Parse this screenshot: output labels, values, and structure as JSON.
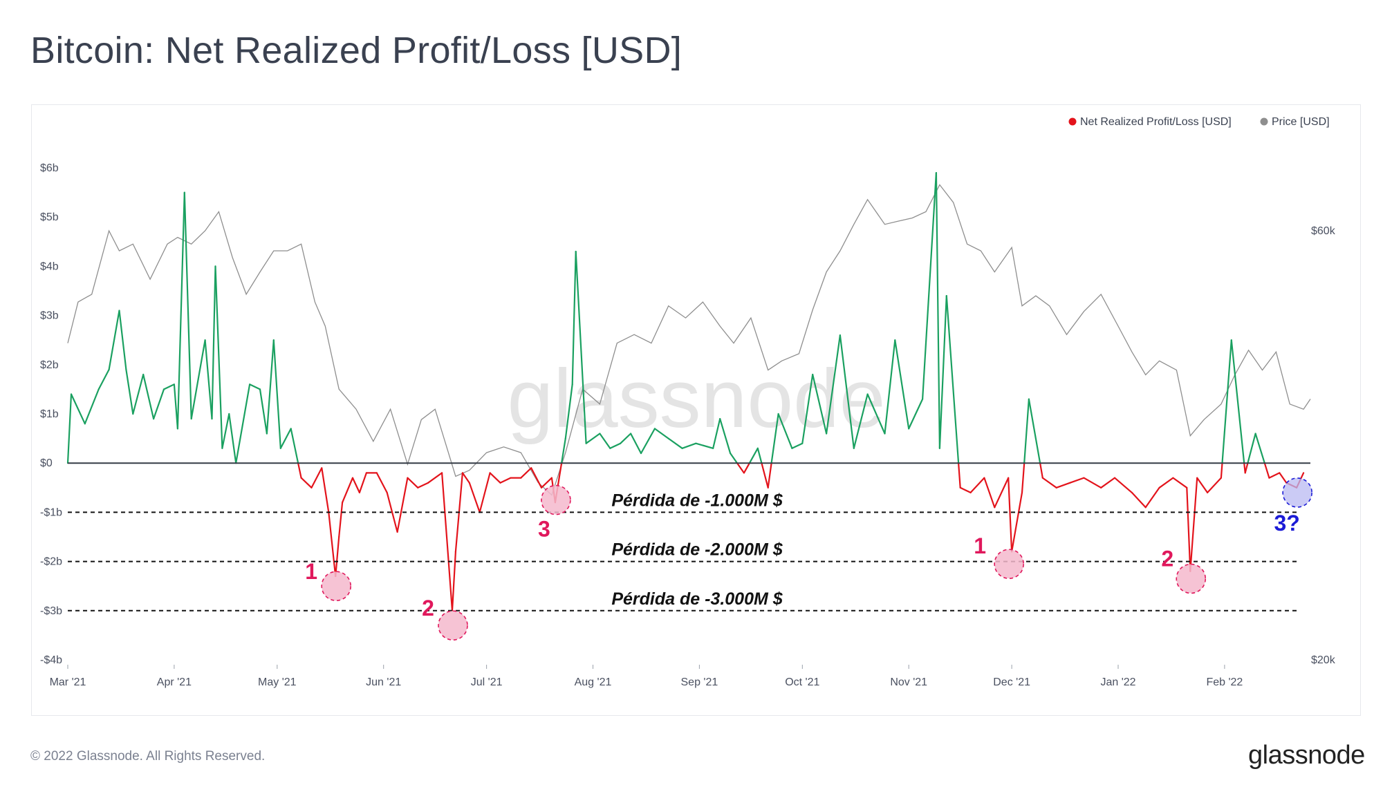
{
  "title": "Bitcoin: Net Realized Profit/Loss [USD]",
  "watermark": "glassnode",
  "footer": {
    "copyright": "© 2022 Glassnode. All Rights Reserved.",
    "logo": "glassnode"
  },
  "colors": {
    "profit": "#1aa060",
    "loss": "#e3131b",
    "price": "#8e8e8e",
    "marker_fill": "#f5b8cc",
    "marker_stroke": "#e0185c",
    "label_pink": "#e0185c",
    "marker_blue_fill": "#b9b9f2",
    "marker_blue_stroke": "#1b1bd6",
    "label_blue": "#1b1bd6"
  },
  "chart_data": {
    "type": "line",
    "legend": {
      "position": "top-right",
      "items": [
        {
          "label": "Net Realized Profit/Loss [USD]",
          "color": "#e3131b"
        },
        {
          "label": "Price [USD]",
          "color": "#8e8e8e"
        }
      ]
    },
    "x_ticks": [
      "Mar '21",
      "Apr '21",
      "May '21",
      "Jun '21",
      "Jul '21",
      "Aug '21",
      "Sep '21",
      "Oct '21",
      "Nov '21",
      "Dec '21",
      "Jan '22",
      "Feb '22"
    ],
    "y_left": {
      "label": "",
      "ylim": [
        -4,
        6
      ],
      "ticks": [
        {
          "value": 6,
          "label": "$6b"
        },
        {
          "value": 5,
          "label": "$5b"
        },
        {
          "value": 4,
          "label": "$4b"
        },
        {
          "value": 3,
          "label": "$3b"
        },
        {
          "value": 2,
          "label": "$2b"
        },
        {
          "value": 1,
          "label": "$1b"
        },
        {
          "value": 0,
          "label": "$0"
        },
        {
          "value": -1,
          "label": "-$1b"
        },
        {
          "value": -2,
          "label": "-$2b"
        },
        {
          "value": -3,
          "label": "-$3b"
        },
        {
          "value": -4,
          "label": "-$4b"
        }
      ]
    },
    "y_right": {
      "label": "",
      "scale": "log",
      "ylim": [
        20000,
        70000
      ],
      "ticks": [
        {
          "value": 60000,
          "label": "$60k"
        },
        {
          "value": 20000,
          "label": "$20k"
        }
      ]
    },
    "series": [
      {
        "name": "Net Realized Profit/Loss [USD]",
        "unit": "billion USD",
        "x": [
          "2021-03-01",
          "2021-03-02",
          "2021-03-06",
          "2021-03-10",
          "2021-03-13",
          "2021-03-16",
          "2021-03-18",
          "2021-03-20",
          "2021-03-23",
          "2021-03-26",
          "2021-03-29",
          "2021-04-01",
          "2021-04-02",
          "2021-04-04",
          "2021-04-06",
          "2021-04-08",
          "2021-04-10",
          "2021-04-12",
          "2021-04-13",
          "2021-04-15",
          "2021-04-17",
          "2021-04-19",
          "2021-04-23",
          "2021-04-26",
          "2021-04-28",
          "2021-04-30",
          "2021-05-02",
          "2021-05-05",
          "2021-05-08",
          "2021-05-11",
          "2021-05-14",
          "2021-05-16",
          "2021-05-18",
          "2021-05-19",
          "2021-05-20",
          "2021-05-23",
          "2021-05-25",
          "2021-05-27",
          "2021-05-30",
          "2021-06-02",
          "2021-06-05",
          "2021-06-08",
          "2021-06-11",
          "2021-06-14",
          "2021-06-18",
          "2021-06-21",
          "2021-06-22",
          "2021-06-24",
          "2021-06-26",
          "2021-06-29",
          "2021-07-02",
          "2021-07-05",
          "2021-07-08",
          "2021-07-11",
          "2021-07-14",
          "2021-07-17",
          "2021-07-20",
          "2021-07-21",
          "2021-07-24",
          "2021-07-26",
          "2021-07-27",
          "2021-07-30",
          "2021-08-03",
          "2021-08-06",
          "2021-08-09",
          "2021-08-12",
          "2021-08-15",
          "2021-08-19",
          "2021-08-23",
          "2021-08-27",
          "2021-08-31",
          "2021-09-05",
          "2021-09-07",
          "2021-09-10",
          "2021-09-14",
          "2021-09-18",
          "2021-09-21",
          "2021-09-24",
          "2021-09-28",
          "2021-10-01",
          "2021-10-04",
          "2021-10-08",
          "2021-10-12",
          "2021-10-16",
          "2021-10-20",
          "2021-10-25",
          "2021-10-28",
          "2021-11-01",
          "2021-11-05",
          "2021-11-09",
          "2021-11-10",
          "2021-11-12",
          "2021-11-16",
          "2021-11-19",
          "2021-11-23",
          "2021-11-26",
          "2021-11-30",
          "2021-12-01",
          "2021-12-04",
          "2021-12-06",
          "2021-12-10",
          "2021-12-14",
          "2021-12-18",
          "2021-12-22",
          "2021-12-27",
          "2021-12-31",
          "2022-01-05",
          "2022-01-09",
          "2022-01-13",
          "2022-01-17",
          "2022-01-21",
          "2022-01-22",
          "2022-01-24",
          "2022-01-27",
          "2022-01-31",
          "2022-02-03",
          "2022-02-07",
          "2022-02-10",
          "2022-02-14",
          "2022-02-17",
          "2022-02-19",
          "2022-02-22",
          "2022-02-24"
        ],
        "values": [
          0.0,
          1.4,
          0.8,
          1.5,
          1.9,
          3.1,
          1.9,
          1.0,
          1.8,
          0.9,
          1.5,
          1.6,
          0.7,
          5.5,
          0.9,
          1.7,
          2.5,
          0.9,
          4.0,
          0.3,
          1.0,
          0.0,
          1.6,
          1.5,
          0.6,
          2.5,
          0.3,
          0.7,
          -0.3,
          -0.5,
          -0.1,
          -1.0,
          -2.3,
          -1.5,
          -0.8,
          -0.3,
          -0.6,
          -0.2,
          -0.2,
          -0.6,
          -1.4,
          -0.3,
          -0.5,
          -0.4,
          -0.2,
          -3.0,
          -1.8,
          -0.2,
          -0.4,
          -1.0,
          -0.2,
          -0.4,
          -0.3,
          -0.3,
          -0.1,
          -0.5,
          -0.3,
          -0.8,
          0.5,
          1.6,
          4.3,
          0.4,
          0.6,
          0.3,
          0.4,
          0.6,
          0.2,
          0.7,
          0.5,
          0.3,
          0.4,
          0.3,
          0.9,
          0.2,
          -0.2,
          0.3,
          -0.5,
          1.0,
          0.3,
          0.4,
          1.8,
          0.6,
          2.6,
          0.3,
          1.4,
          0.6,
          2.5,
          0.7,
          1.3,
          5.9,
          0.3,
          3.4,
          -0.5,
          -0.6,
          -0.3,
          -0.9,
          -0.3,
          -1.8,
          -0.6,
          1.3,
          -0.3,
          -0.5,
          -0.4,
          -0.3,
          -0.5,
          -0.3,
          -0.6,
          -0.9,
          -0.5,
          -0.3,
          -0.5,
          -2.2,
          -0.3,
          -0.6,
          -0.3,
          2.5,
          -0.2,
          0.6,
          -0.3,
          -0.2,
          -0.4,
          -0.5,
          -0.2
        ]
      },
      {
        "name": "Price [USD]",
        "unit": "USD",
        "x": [
          "2021-03-01",
          "2021-03-04",
          "2021-03-08",
          "2021-03-13",
          "2021-03-16",
          "2021-03-20",
          "2021-03-25",
          "2021-03-30",
          "2021-04-02",
          "2021-04-06",
          "2021-04-10",
          "2021-04-14",
          "2021-04-18",
          "2021-04-22",
          "2021-04-26",
          "2021-04-30",
          "2021-05-04",
          "2021-05-08",
          "2021-05-12",
          "2021-05-15",
          "2021-05-19",
          "2021-05-24",
          "2021-05-29",
          "2021-06-03",
          "2021-06-08",
          "2021-06-12",
          "2021-06-16",
          "2021-06-22",
          "2021-06-26",
          "2021-07-01",
          "2021-07-06",
          "2021-07-11",
          "2021-07-16",
          "2021-07-20",
          "2021-07-24",
          "2021-07-29",
          "2021-08-03",
          "2021-08-08",
          "2021-08-13",
          "2021-08-18",
          "2021-08-23",
          "2021-08-28",
          "2021-09-02",
          "2021-09-07",
          "2021-09-11",
          "2021-09-16",
          "2021-09-21",
          "2021-09-25",
          "2021-09-30",
          "2021-10-04",
          "2021-10-08",
          "2021-10-12",
          "2021-10-16",
          "2021-10-20",
          "2021-10-25",
          "2021-10-29",
          "2021-11-02",
          "2021-11-06",
          "2021-11-10",
          "2021-11-14",
          "2021-11-18",
          "2021-11-22",
          "2021-11-26",
          "2021-12-01",
          "2021-12-04",
          "2021-12-08",
          "2021-12-12",
          "2021-12-17",
          "2021-12-22",
          "2021-12-27",
          "2022-01-01",
          "2022-01-05",
          "2022-01-09",
          "2022-01-13",
          "2022-01-18",
          "2022-01-22",
          "2022-01-26",
          "2022-01-31",
          "2022-02-04",
          "2022-02-08",
          "2022-02-12",
          "2022-02-16",
          "2022-02-20",
          "2022-02-24",
          "2022-02-26"
        ],
        "values": [
          45000,
          50000,
          51000,
          60000,
          57000,
          58000,
          53000,
          58000,
          59000,
          58000,
          60000,
          63000,
          56000,
          51000,
          54000,
          57000,
          57000,
          58000,
          50000,
          47000,
          40000,
          38000,
          35000,
          38000,
          33000,
          37000,
          38000,
          32000,
          32500,
          34000,
          34500,
          34000,
          31500,
          30500,
          34000,
          40000,
          38500,
          45000,
          46000,
          45000,
          49500,
          48000,
          50000,
          47000,
          45000,
          48000,
          42000,
          43000,
          43800,
          49000,
          54000,
          57000,
          61000,
          65000,
          61000,
          61500,
          62000,
          63000,
          67500,
          64500,
          58000,
          57000,
          54000,
          57500,
          49500,
          50800,
          49500,
          46000,
          48800,
          51000,
          47000,
          44000,
          41500,
          43000,
          42000,
          35500,
          37000,
          38500,
          41500,
          44200,
          42000,
          44000,
          38500,
          38000,
          39000
        ]
      }
    ],
    "reference_lines": [
      {
        "y": -1,
        "label": "Pérdida de -1.000M $"
      },
      {
        "y": -2,
        "label": "Pérdida de -2.000M $"
      },
      {
        "y": -3,
        "label": "Pérdida de -3.000M $"
      }
    ],
    "annotations": [
      {
        "date": "2021-05-18",
        "y": -2.5,
        "label": "1",
        "color": "pink"
      },
      {
        "date": "2021-06-21",
        "y": -3.3,
        "label": "2",
        "color": "pink"
      },
      {
        "date": "2021-07-21",
        "y": -0.75,
        "label": "3",
        "color": "pink"
      },
      {
        "date": "2021-11-30",
        "y": -2.05,
        "label": "1",
        "color": "pink"
      },
      {
        "date": "2022-01-22",
        "y": -2.35,
        "label": "2",
        "color": "pink"
      },
      {
        "date": "2022-02-22",
        "y": -0.6,
        "label": "3?",
        "color": "blue"
      }
    ]
  }
}
